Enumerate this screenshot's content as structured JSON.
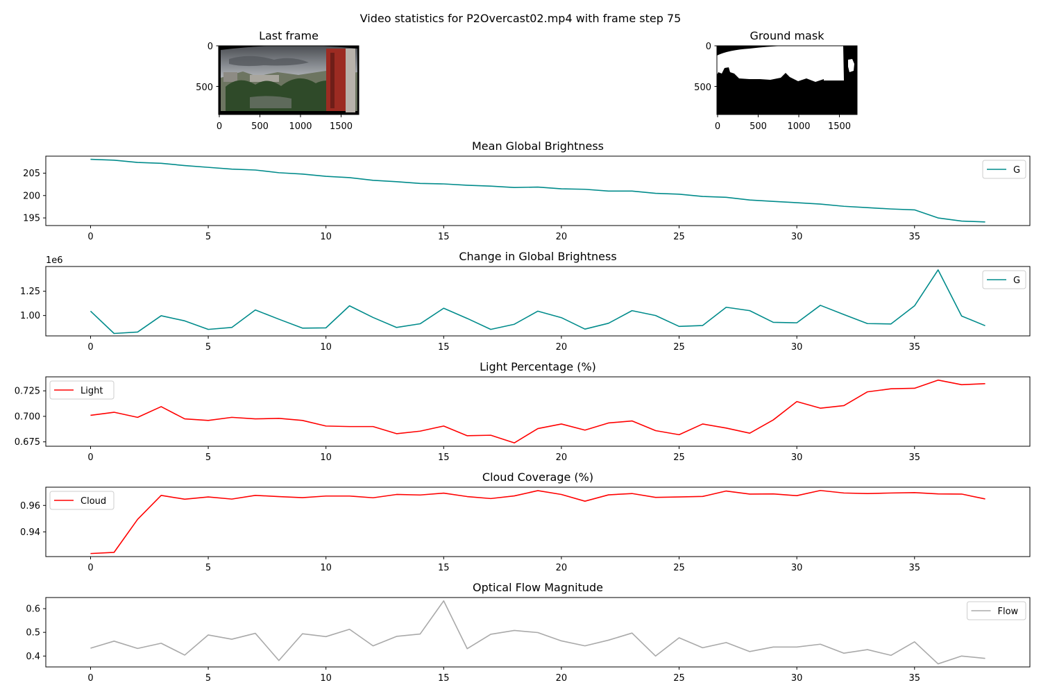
{
  "figure_title": "Video statistics for P2Overcast02.mp4 with frame step 75",
  "images": [
    {
      "title": "Last frame",
      "xticks": [
        "0",
        "500",
        "1000",
        "1500"
      ],
      "yticks": [
        "0",
        "500"
      ]
    },
    {
      "title": "Ground mask",
      "xticks": [
        "0",
        "500",
        "1000",
        "1500"
      ],
      "yticks": [
        "0",
        "500"
      ]
    }
  ],
  "chart_data": [
    {
      "type": "line",
      "title": "Mean Global Brightness",
      "xticks": [
        0,
        5,
        10,
        15,
        20,
        25,
        30,
        35
      ],
      "yticks": [
        195,
        200,
        205
      ],
      "ylim": [
        193.3,
        208.8
      ],
      "legend": "upper right",
      "series": [
        {
          "name": "G",
          "color": "#008b8b",
          "values": [
            208.1,
            207.9,
            207.4,
            207.2,
            206.7,
            206.3,
            205.9,
            205.7,
            205.1,
            204.8,
            204.3,
            204.0,
            203.4,
            203.1,
            202.7,
            202.6,
            202.3,
            202.1,
            201.8,
            201.9,
            201.5,
            201.4,
            201.0,
            201.0,
            200.5,
            200.3,
            199.8,
            199.6,
            199.0,
            198.7,
            198.4,
            198.1,
            197.6,
            197.3,
            197.0,
            196.8,
            195.0,
            194.3,
            194.1
          ]
        }
      ]
    },
    {
      "type": "line",
      "title": "Change in Global Brightness",
      "offset_text": "1e6",
      "xticks": [
        0,
        5,
        10,
        15,
        20,
        25,
        30,
        35
      ],
      "yticks": [
        "1.00",
        "1.25"
      ],
      "yticks_values": [
        1.0,
        1.25
      ],
      "ylim": [
        0.79,
        1.505
      ],
      "legend": "upper right",
      "series": [
        {
          "name": "G",
          "color": "#008b8b",
          "values": [
            1.045,
            0.815,
            0.83,
            0.998,
            0.945,
            0.857,
            0.877,
            1.057,
            0.962,
            0.87,
            0.873,
            1.1,
            0.98,
            0.877,
            0.915,
            1.075,
            0.97,
            0.857,
            0.91,
            1.045,
            0.978,
            0.86,
            0.92,
            1.05,
            1.0,
            0.888,
            0.897,
            1.085,
            1.05,
            0.93,
            0.925,
            1.105,
            1.01,
            0.917,
            0.913,
            1.1,
            1.47,
            0.995,
            0.895
          ]
        }
      ]
    },
    {
      "type": "line",
      "title": "Light Percentage (%)",
      "xticks": [
        0,
        5,
        10,
        15,
        20,
        25,
        30,
        35
      ],
      "yticks": [
        "0.675",
        "0.700",
        "0.725"
      ],
      "yticks_values": [
        0.675,
        0.7,
        0.725
      ],
      "ylim": [
        0.6707,
        0.7387
      ],
      "legend": "upper left",
      "series": [
        {
          "name": "Light",
          "color": "#ff0000",
          "values": [
            0.701,
            0.704,
            0.699,
            0.7095,
            0.6975,
            0.696,
            0.699,
            0.6975,
            0.698,
            0.696,
            0.6905,
            0.69,
            0.69,
            0.683,
            0.6855,
            0.6905,
            0.681,
            0.6815,
            0.674,
            0.688,
            0.6925,
            0.6865,
            0.6935,
            0.6955,
            0.686,
            0.682,
            0.6925,
            0.6885,
            0.6835,
            0.6965,
            0.7145,
            0.708,
            0.7105,
            0.724,
            0.727,
            0.7275,
            0.7355,
            0.731,
            0.732
          ]
        }
      ]
    },
    {
      "type": "line",
      "title": "Cloud Coverage (%)",
      "xticks": [
        0,
        5,
        10,
        15,
        20,
        25,
        30,
        35
      ],
      "yticks": [
        "0.94",
        "0.96"
      ],
      "yticks_values": [
        0.94,
        0.96
      ],
      "ylim": [
        0.9213,
        0.9738
      ],
      "legend": "upper left",
      "series": [
        {
          "name": "Cloud",
          "color": "#ff0000",
          "values": [
            0.9236,
            0.9245,
            0.9495,
            0.9676,
            0.9647,
            0.9664,
            0.9648,
            0.9676,
            0.9667,
            0.9659,
            0.9671,
            0.9671,
            0.9658,
            0.9683,
            0.9679,
            0.9693,
            0.9667,
            0.9652,
            0.9672,
            0.9712,
            0.9683,
            0.9632,
            0.968,
            0.969,
            0.9661,
            0.9664,
            0.9668,
            0.9709,
            0.9686,
            0.9687,
            0.9674,
            0.9713,
            0.9694,
            0.969,
            0.9694,
            0.9697,
            0.9687,
            0.9686,
            0.9649
          ]
        }
      ]
    },
    {
      "type": "line",
      "title": "Optical Flow Magnitude",
      "xticks": [
        0,
        5,
        10,
        15,
        20,
        25,
        30,
        35
      ],
      "yticks": [
        "0.4",
        "0.5",
        "0.6"
      ],
      "yticks_values": [
        0.4,
        0.5,
        0.6
      ],
      "ylim": [
        0.354,
        0.647
      ],
      "legend": "upper right",
      "series": [
        {
          "name": "Flow",
          "color": "#a9a9a9",
          "values": [
            0.433,
            0.463,
            0.432,
            0.454,
            0.404,
            0.489,
            0.471,
            0.496,
            0.381,
            0.494,
            0.482,
            0.513,
            0.443,
            0.483,
            0.493,
            0.633,
            0.431,
            0.492,
            0.508,
            0.499,
            0.464,
            0.443,
            0.467,
            0.497,
            0.4,
            0.477,
            0.435,
            0.457,
            0.419,
            0.438,
            0.438,
            0.45,
            0.412,
            0.427,
            0.403,
            0.46,
            0.367,
            0.4,
            0.39
          ]
        }
      ]
    }
  ]
}
